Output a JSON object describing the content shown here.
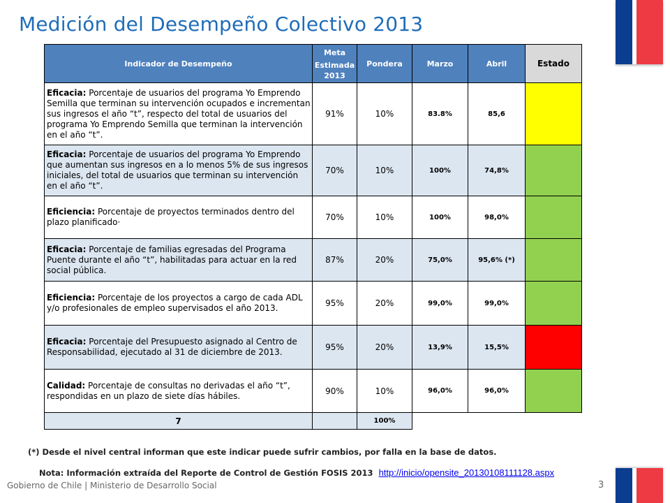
{
  "slide": {
    "title": "Medición del Desempeño Colectivo 2013",
    "page_number": "3",
    "footer": "Gobierno de Chile | Ministerio de Desarrollo Social"
  },
  "table": {
    "headers": {
      "indicador": "Indicador de Desempeño",
      "meta_1": "Meta",
      "meta_2": "Estimada",
      "meta_3": "2013",
      "pondera": "Pondera",
      "marzo": "Marzo",
      "abril": "Abril",
      "estado": "Estado"
    },
    "rows": [
      {
        "type": "Eficacia:",
        "text": "Porcentaje de usuarios del programa Yo Emprendo Semilla  que terminan su intervención ocupados e incrementan sus ingresos el año “t”, respecto del total de usuarios del programa Yo Emprendo Semilla que terminan la intervención en el año “t”.",
        "meta": "91%",
        "pondera": "10%",
        "marzo": "83.8%",
        "abril": "85,6",
        "estado": "yellow"
      },
      {
        "type": "Eficacia:",
        "text": "Porcentaje de usuarios del programa Yo Emprendo que aumentan sus ingresos en a lo menos 5% de sus ingresos iniciales, del total de usuarios que terminan su intervención en el año “t”.",
        "meta": "70%",
        "pondera": "10%",
        "marzo": "100%",
        "abril": "74,8%",
        "estado": "green"
      },
      {
        "type": "Eficiencia:",
        "text": "Porcentaje de proyectos terminados dentro del plazo planificado·",
        "meta": "70%",
        "pondera": "10%",
        "marzo": "100%",
        "abril": "98,0%",
        "estado": "green"
      },
      {
        "type": "Eficacia:",
        "text": "Porcentaje de familias egresadas del  Programa Puente durante el año “t”, habilitadas  para actuar en la  red social pública.",
        "meta": "87%",
        "pondera": "20%",
        "marzo": "75,0%",
        "abril": "95,6% (*)",
        "estado": "green"
      },
      {
        "type": "Eficiencia:",
        "text": "Porcentaje de los proyectos a cargo de cada ADL y/o profesionales de empleo supervisados el año 2013.",
        "meta": "95%",
        "pondera": "20%",
        "marzo": "99,0%",
        "abril": "99,0%",
        "estado": "green"
      },
      {
        "type": "Eficacia:",
        "text": "Porcentaje del Presupuesto asignado al  Centro de Responsabilidad, ejecutado al 31 de diciembre de 2013.",
        "meta": "95%",
        "pondera": "20%",
        "marzo": "13,9%",
        "abril": "15,5%",
        "estado": "red"
      },
      {
        "type": "Calidad:",
        "text": "Porcentaje de consultas no derivadas el año “t”, respondidas en un plazo de siete días hábiles.",
        "meta": "90%",
        "pondera": "10%",
        "marzo": "96,0%",
        "abril": "96,0%",
        "estado": "green"
      }
    ],
    "total": {
      "count": "7",
      "pondera": "100%"
    }
  },
  "notes": {
    "note1": "(*) Desde el nivel central informan que este indicar puede sufrir cambios, por falla en la base de datos.",
    "note2": "Nota: Información extraída del Reporte de Control de Gestión FOSIS 2013",
    "link": "http://inicio/opensite_20130108111128.aspx"
  },
  "colors": {
    "title": "#1F6DB8",
    "header": "#4F81BD",
    "row_alt": "#DCE6F1",
    "status_yellow": "#FFFF00",
    "status_green": "#92D050",
    "status_red": "#FF0000",
    "flag_blue": "#0B3D91",
    "flag_red": "#EE3A43"
  }
}
